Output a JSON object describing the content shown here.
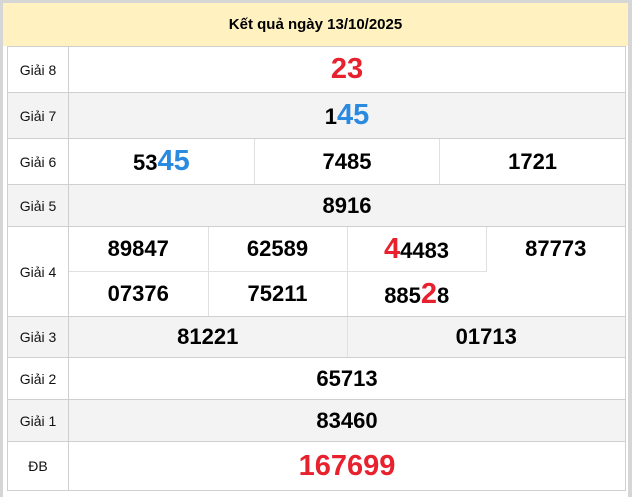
{
  "title": "Kết quả ngày 13/10/2025",
  "colors": {
    "highlight_red": "#e8212e",
    "highlight_blue": "#2a8ae0",
    "header_bg": "#fff2c0",
    "alt_row_bg": "#f3f3f3"
  },
  "prizes": [
    {
      "label": "Giải 8",
      "rows": [
        [
          [
            {
              "t": "23",
              "c": "red"
            }
          ]
        ]
      ]
    },
    {
      "label": "Giải 7",
      "rows": [
        [
          [
            {
              "t": "1"
            },
            {
              "t": "45",
              "c": "blue"
            }
          ]
        ]
      ]
    },
    {
      "label": "Giải 6",
      "rows": [
        [
          [
            {
              "t": "53"
            },
            {
              "t": "45",
              "c": "blue"
            }
          ],
          [
            {
              "t": "7485"
            }
          ],
          [
            {
              "t": "1721"
            }
          ]
        ]
      ]
    },
    {
      "label": "Giải 5",
      "rows": [
        [
          [
            {
              "t": "8916"
            }
          ]
        ]
      ]
    },
    {
      "label": "Giải 4",
      "rows": [
        [
          [
            {
              "t": "89847"
            }
          ],
          [
            {
              "t": "62589"
            }
          ],
          [
            {
              "t": "4",
              "c": "red"
            },
            {
              "t": "4483"
            }
          ],
          [
            {
              "t": "87773"
            }
          ]
        ],
        [
          [
            {
              "t": "07376"
            }
          ],
          [
            {
              "t": "75211"
            }
          ],
          [
            {
              "t": "885"
            },
            {
              "t": "2",
              "c": "red"
            },
            {
              "t": "8"
            }
          ]
        ]
      ]
    },
    {
      "label": "Giải 3",
      "rows": [
        [
          [
            {
              "t": "81221"
            }
          ],
          [
            {
              "t": "01713"
            }
          ]
        ]
      ]
    },
    {
      "label": "Giải 2",
      "rows": [
        [
          [
            {
              "t": "65713"
            }
          ]
        ]
      ]
    },
    {
      "label": "Giải 1",
      "rows": [
        [
          [
            {
              "t": "83460"
            }
          ]
        ]
      ]
    },
    {
      "label": "ĐB",
      "rows": [
        [
          [
            {
              "t": "167699",
              "c": "red",
              "big": true
            }
          ]
        ]
      ]
    }
  ]
}
